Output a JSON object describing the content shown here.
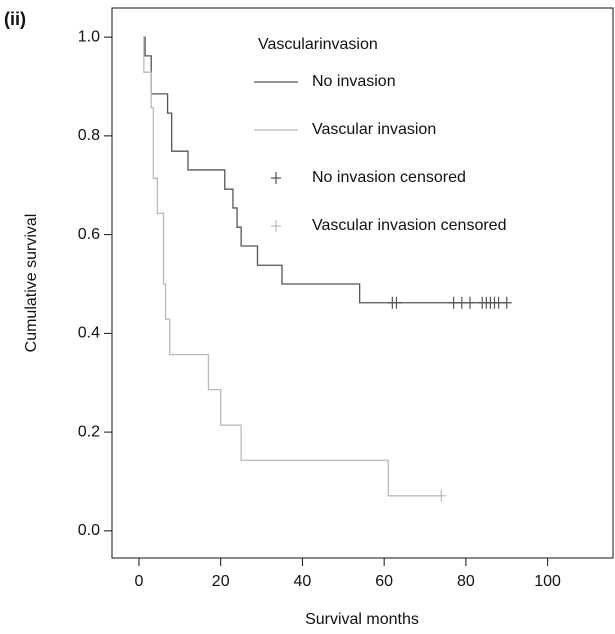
{
  "chart_data": {
    "type": "step",
    "panel_label": "(ii)",
    "xlabel": "Survival months",
    "ylabel": "Cumulative survival",
    "legend_title": "Vascularinvasion",
    "legend": "top-right",
    "xlim": [
      -6.6,
      116
    ],
    "ylim": [
      -0.055,
      1.059
    ],
    "xticks": [
      0,
      20,
      40,
      60,
      80,
      100
    ],
    "yticks": [
      {
        "value": 0,
        "label": "0.0"
      },
      0.2,
      0.4,
      0.6,
      0.8,
      {
        "value": 1,
        "label": "1.0"
      }
    ],
    "series": [
      {
        "name": "No invasion",
        "color": "#555555",
        "x": [
          1,
          1.5,
          3,
          7,
          8,
          12,
          21,
          23,
          24,
          25,
          29,
          35,
          54,
          90
        ],
        "values": [
          1.0,
          0.962,
          0.885,
          0.846,
          0.769,
          0.731,
          0.692,
          0.654,
          0.615,
          0.577,
          0.538,
          0.5,
          0.462,
          0.462
        ]
      },
      {
        "name": "Vascular invasion",
        "color": "#bbbbbb",
        "x": [
          1,
          1.2,
          3,
          3.5,
          4.5,
          6,
          6.5,
          7.5,
          17,
          20,
          25,
          61,
          74
        ],
        "values": [
          1.0,
          0.929,
          0.857,
          0.714,
          0.643,
          0.5,
          0.429,
          0.357,
          0.286,
          0.214,
          0.143,
          0.071,
          0.071
        ]
      },
      {
        "name": "No invasion censored",
        "color": "#555555",
        "marker": "+",
        "x": [
          62,
          63,
          77,
          79,
          81,
          84,
          85,
          86,
          87,
          88,
          90
        ],
        "values": [
          0.462,
          0.462,
          0.462,
          0.462,
          0.462,
          0.462,
          0.462,
          0.462,
          0.462,
          0.462,
          0.462
        ]
      },
      {
        "name": "Vascular invasion censored",
        "color": "#bbbbbb",
        "marker": "+",
        "x": [
          74
        ],
        "values": [
          0.071
        ]
      }
    ]
  }
}
